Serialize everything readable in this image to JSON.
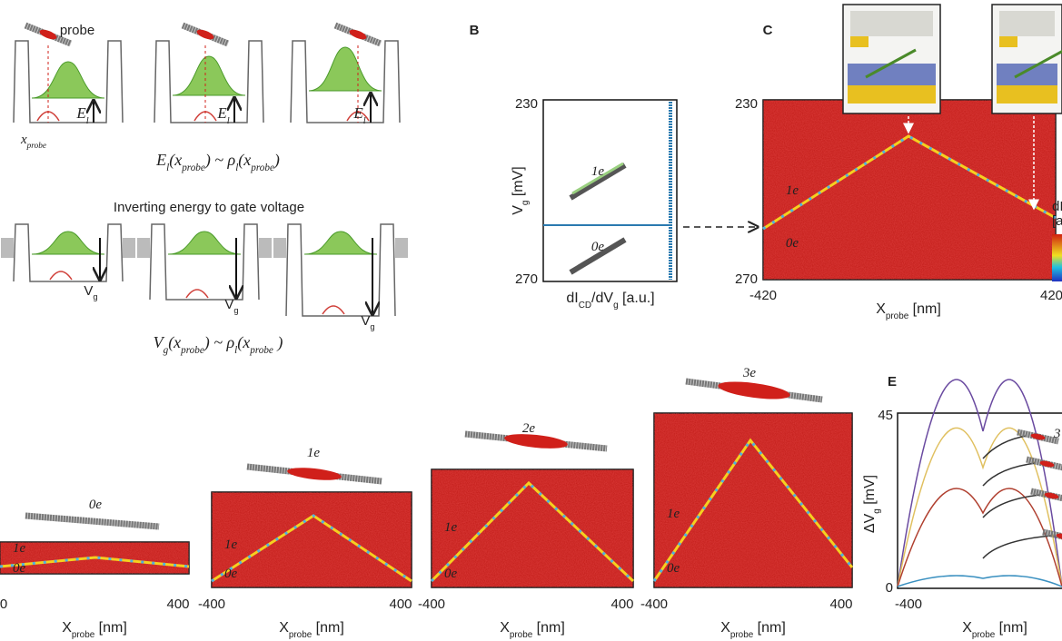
{
  "panel_a": {
    "probe": "probe",
    "x_probe": [
      "x",
      "probe"
    ],
    "energy": [
      "E",
      "l"
    ],
    "equation_energy": [
      "E",
      "l",
      "(x",
      "probe",
      ") ~ ρ",
      "l",
      "(x",
      "probe",
      ")"
    ],
    "heading": "Inverting energy to gate voltage",
    "gate": [
      "V",
      "g"
    ],
    "equation_gate": [
      "V",
      "g",
      "(x",
      "probe",
      ") ~ ρ",
      "l",
      "(x",
      "probe",
      " )"
    ]
  },
  "panel_b": {
    "label": "B",
    "y_ticks": [
      "230",
      "270"
    ],
    "y_label": [
      "V",
      "g",
      " [mV]"
    ],
    "charge_labels": [
      "1e",
      "0e"
    ],
    "x_label": [
      "dI",
      "CD",
      "/dV",
      "g",
      " [a.u.]"
    ]
  },
  "panel_c": {
    "label": "C",
    "y_ticks": [
      "230",
      "270"
    ],
    "x_ticks": [
      "-420",
      "420"
    ],
    "charge_labels": [
      "1e",
      "0e"
    ],
    "x_label": [
      "X",
      "probe",
      " [nm]"
    ],
    "colorbar_label": [
      "dI",
      "[a"
    ]
  },
  "panels_d": [
    {
      "title": "0e",
      "charge_labels": [
        "1e",
        "0e"
      ],
      "x_ticks": [
        "0",
        "400"
      ],
      "x_label": [
        "X",
        "probe",
        " [nm]"
      ]
    },
    {
      "title": "1e",
      "charge_labels": [
        "1e",
        "0e"
      ],
      "x_ticks": [
        "-400",
        "400"
      ],
      "x_label": [
        "X",
        "probe",
        " [nm]"
      ]
    },
    {
      "title": "2e",
      "charge_labels": [
        "1e",
        "0e"
      ],
      "x_ticks": [
        "-400",
        "400"
      ],
      "x_label": [
        "X",
        "probe",
        " [nm]"
      ]
    },
    {
      "title": "3e",
      "charge_labels": [
        "1e",
        "0e"
      ],
      "x_ticks": [
        "-400",
        "400"
      ],
      "x_label": [
        "X",
        "probe",
        " [nm]"
      ]
    }
  ],
  "panel_e": {
    "label": "E",
    "y_ticks": [
      "45",
      "0"
    ],
    "x_ticks": [
      "-400"
    ],
    "y_label": [
      "ΔV",
      "g",
      " [mV]"
    ],
    "x_label": [
      "X",
      "probe",
      " [nm]"
    ],
    "marker": "3"
  }
}
